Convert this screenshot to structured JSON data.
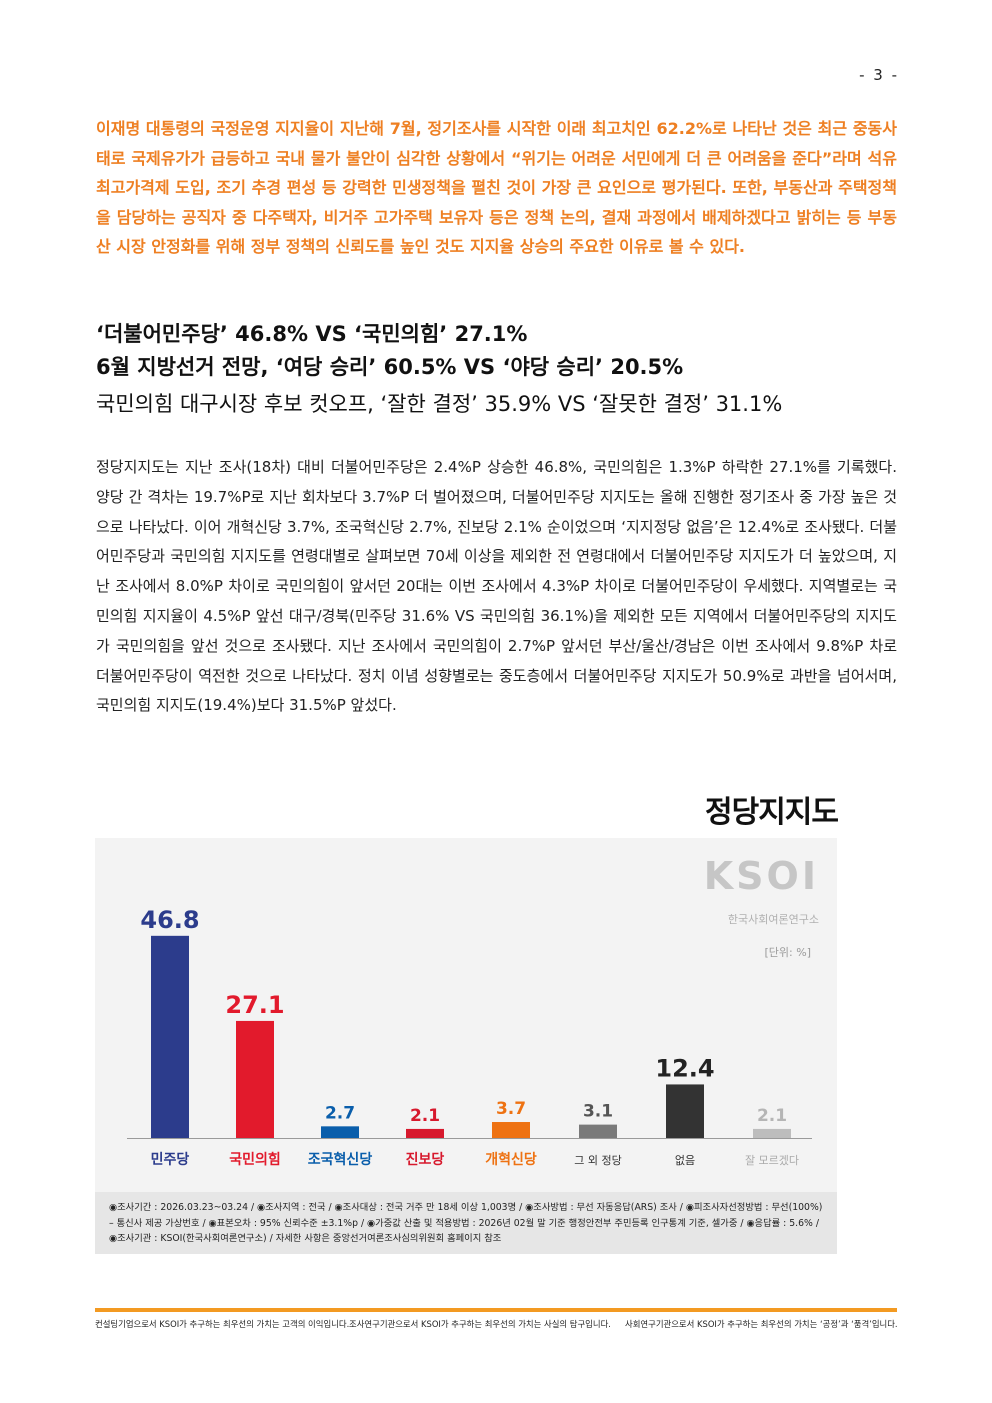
{
  "page_number": "- 3 -",
  "lead_paragraph": "이재명 대통령의 국정운영 지지율이 지난해 7월, 정기조사를 시작한 이래 최고치인 62.2%로 나타난 것은 최근 중동사태로 국제유가가 급등하고 국내 물가 불안이 심각한 상황에서 “위기는 어려운 서민에게 더 큰 어려움을 준다”라며 석유최고가격제 도입, 조기 추경 편성 등 강력한 민생정책을 펼친 것이 가장 큰 요인으로 평가된다. 또한, 부동산과 주택정책을 담당하는 공직자 중 다주택자, 비거주 고가주택 보유자 등은 정책 논의, 결재 과정에서 배제하겠다고 밝히는 등 부동산 시장 안정화를 위해 정부 정책의 신뢰도를 높인 것도 지지율 상승의 주요한 이유로 볼 수 있다.",
  "headlines": [
    "‘더불어민주당’ 46.8% VS ‘국민의힘’ 27.1%",
    "6월 지방선거 전망, ‘여당 승리’ 60.5% VS ‘야당 승리’ 20.5%",
    "국민의힘 대구시장 후보 컷오프, ‘잘한 결정’ 35.9% VS ‘잘못한 결정’ 31.1%"
  ],
  "body_paragraph": "정당지지도는 지난 조사(18차) 대비 더불어민주당은 2.4%P 상승한 46.8%, 국민의힘은 1.3%P 하락한 27.1%를 기록했다. 양당 간 격차는 19.7%P로 지난 회차보다 3.7%P 더 벌어졌으며, 더불어민주당 지지도는 올해 진행한 정기조사 중 가장 높은 것으로 나타났다. 이어 개혁신당 3.7%, 조국혁신당 2.7%, 진보당 2.1% 순이었으며 ‘지지정당 없음’은 12.4%로 조사됐다. 더불어민주당과 국민의힘 지지도를 연령대별로 살펴보면 70세 이상을 제외한 전 연령대에서 더불어민주당 지지도가 더 높았으며, 지난 조사에서 8.0%P 차이로 국민의힘이 앞서던 20대는 이번 조사에서 4.3%P 차이로 더불어민주당이 우세했다. 지역별로는 국민의힘 지지율이 4.5%P 앞선 대구/경북(민주당 31.6% VS 국민의힘 36.1%)을 제외한 모든 지역에서 더불어민주당의 지지도가 국민의힘을 앞선 것으로 조사됐다. 지난 조사에서 국민의힘이 2.7%P 앞서던 부산/울산/경남은 이번 조사에서 9.8%P 차로 더불어민주당이 역전한 것으로 나타났다. 정치 이념 성향별로는 중도층에서 더불어민주당 지지도가 50.9%로 과반을 넘어서며, 국민의힘 지지도(19.4%)보다 31.5%P 앞섰다.",
  "chart_title": "정당지지도",
  "logo_text": "KSOI",
  "logo_subtitle": "한국사회여론연구소",
  "unit_label": "[단위: %]",
  "chart_data": {
    "type": "bar",
    "title": "정당지지도",
    "unit": "[단위: %]",
    "categories": [
      "민주당",
      "국민의힘",
      "조국혁신당",
      "진보당",
      "개혁신당",
      "그 외 정당",
      "없음",
      "잘 모르겠다"
    ],
    "values": [
      46.8,
      27.1,
      2.7,
      2.1,
      3.7,
      3.1,
      12.4,
      2.1
    ],
    "value_labels": [
      "46.8",
      "27.1",
      "2.7",
      "2.1",
      "3.7",
      "3.1",
      "12.4",
      "2.1"
    ],
    "colors": [
      "#2c3c8c",
      "#e21a2c",
      "#0a5eab",
      "#d7192d",
      "#ee7212",
      "#7a7a7a",
      "#333333",
      "#bdbdbd"
    ],
    "label_colors": [
      "#2c3c8c",
      "#e21a2c",
      "#0a5eab",
      "#d7192d",
      "#ee7212",
      "#555555",
      "#222222",
      "#b5b5b5"
    ],
    "ylim": [
      0,
      50
    ],
    "grid": false,
    "legend": "none"
  },
  "survey_note": "◉조사기간 : 2026.03.23~03.24 / ◉조사지역 : 전국 / ◉조사대상 : 전국 거주 만 18세 이상 1,003명 / ◉조사방법 : 무선 자동응답(ARS) 조사 / ◉피조사자선정방법 : 무선(100%) – 통신사 제공 가상번호 / ◉표본오차 : 95% 신뢰수준 ±3.1%p / ◉가중값 산출 및 적용방법 : 2026년 02월 말 기준 행정안전부 주민등록 인구통계 기준, 셀가중 / ◉응답률 : 5.6% / ◉조사기관 : KSOI(한국사회여론연구소) / 자세한 사항은 중앙선거여론조사심의위원회 홈페이지 참조",
  "footer": [
    "컨설팅기업으로서 KSOI가 추구하는 최우선의 가치는 고객의 이익입니다.",
    "조사연구기관으로서 KSOI가 추구하는 최우선의 가치는 사실의 탐구입니다.",
    "사회연구기관으로서 KSOI가 추구하는 최우선의 가치는 ‘공정’과 ‘품격’입니다."
  ]
}
